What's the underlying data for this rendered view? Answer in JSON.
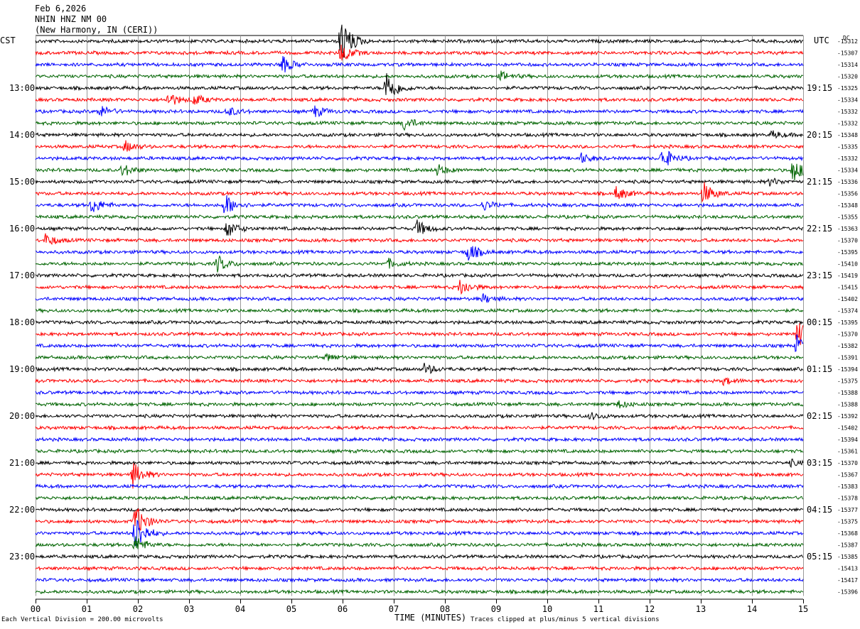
{
  "header": {
    "date": "Feb 6,2026",
    "station": "NHIN HNZ NM 00",
    "location": "(New Harmony, IN (CERI))"
  },
  "left_axis_label": "CST",
  "right_axis_label": "UTC",
  "dc_label": "DC",
  "xlabel": "TIME (MINUTES)",
  "footer_left": "Each Vertical Division =  200.00 microvolts",
  "footer_right": "Traces clipped at plus/minus 5 vertical divisions",
  "colors": {
    "trace": [
      "#000000",
      "#ff0000",
      "#0000ff",
      "#006400"
    ],
    "grid": "#999999"
  },
  "chart_data": {
    "type": "line",
    "x_ticks": [
      "00",
      "01",
      "02",
      "03",
      "04",
      "05",
      "06",
      "07",
      "08",
      "09",
      "10",
      "11",
      "12",
      "13",
      "14",
      "15"
    ],
    "xlim": [
      0,
      15
    ],
    "cst_labels": [
      {
        "row": 4,
        "text": "13:00"
      },
      {
        "row": 8,
        "text": "14:00"
      },
      {
        "row": 12,
        "text": "15:00"
      },
      {
        "row": 16,
        "text": "16:00"
      },
      {
        "row": 20,
        "text": "17:00"
      },
      {
        "row": 24,
        "text": "18:00"
      },
      {
        "row": 28,
        "text": "19:00"
      },
      {
        "row": 32,
        "text": "20:00"
      },
      {
        "row": 36,
        "text": "21:00"
      },
      {
        "row": 40,
        "text": "22:00"
      },
      {
        "row": 44,
        "text": "23:00"
      }
    ],
    "utc_labels": [
      {
        "row": 4,
        "text": "19:15"
      },
      {
        "row": 8,
        "text": "20:15"
      },
      {
        "row": 12,
        "text": "21:15"
      },
      {
        "row": 16,
        "text": "22:15"
      },
      {
        "row": 20,
        "text": "23:15"
      },
      {
        "row": 24,
        "text": "00:15"
      },
      {
        "row": 28,
        "text": "01:15"
      },
      {
        "row": 32,
        "text": "02:15"
      },
      {
        "row": 36,
        "text": "03:15"
      },
      {
        "row": 40,
        "text": "04:15"
      },
      {
        "row": 44,
        "text": "05:15"
      }
    ],
    "dc_offsets": [
      "-15312",
      "-15307",
      "-15314",
      "-15320",
      "-15325",
      "-15334",
      "-15332",
      "-15332",
      "-15348",
      "-15335",
      "-15332",
      "-15334",
      "-15336",
      "-15356",
      "-15348",
      "-15355",
      "-15363",
      "-15370",
      "-15395",
      "-15410",
      "-15419",
      "-15415",
      "-15402",
      "-15374",
      "-15395",
      "-15370",
      "-15382",
      "-15391",
      "-15394",
      "-15375",
      "-15388",
      "-15388",
      "-15392",
      "-15402",
      "-15394",
      "-15361",
      "-15370",
      "-15367",
      "-15383",
      "-15378",
      "-15377",
      "-15375",
      "-15368",
      "-15387",
      "-15385",
      "-15413",
      "-15417",
      "-15396"
    ],
    "events": [
      {
        "row": 0,
        "minute": 5.97,
        "amp": 36
      },
      {
        "row": 1,
        "minute": 5.97,
        "amp": 14
      },
      {
        "row": 2,
        "minute": 4.8,
        "amp": 14
      },
      {
        "row": 3,
        "minute": 9.1,
        "amp": 6
      },
      {
        "row": 4,
        "minute": 6.85,
        "amp": 26
      },
      {
        "row": 5,
        "minute": 2.6,
        "amp": 10
      },
      {
        "row": 5,
        "minute": 3.1,
        "amp": 8
      },
      {
        "row": 6,
        "minute": 1.25,
        "amp": 9
      },
      {
        "row": 6,
        "minute": 3.75,
        "amp": 7
      },
      {
        "row": 6,
        "minute": 5.45,
        "amp": 8
      },
      {
        "row": 7,
        "minute": 7.2,
        "amp": 10
      },
      {
        "row": 8,
        "minute": 14.4,
        "amp": 5
      },
      {
        "row": 9,
        "minute": 1.75,
        "amp": 8
      },
      {
        "row": 10,
        "minute": 10.65,
        "amp": 7
      },
      {
        "row": 10,
        "minute": 12.25,
        "amp": 16
      },
      {
        "row": 11,
        "minute": 1.7,
        "amp": 9
      },
      {
        "row": 11,
        "minute": 7.85,
        "amp": 8
      },
      {
        "row": 11,
        "minute": 14.8,
        "amp": 18
      },
      {
        "row": 12,
        "minute": 14.35,
        "amp": 5
      },
      {
        "row": 13,
        "minute": 11.35,
        "amp": 10
      },
      {
        "row": 13,
        "minute": 13.05,
        "amp": 16
      },
      {
        "row": 14,
        "minute": 1.1,
        "amp": 12
      },
      {
        "row": 14,
        "minute": 3.7,
        "amp": 16
      },
      {
        "row": 14,
        "minute": 8.75,
        "amp": 7
      },
      {
        "row": 16,
        "minute": 3.75,
        "amp": 12
      },
      {
        "row": 16,
        "minute": 7.45,
        "amp": 12
      },
      {
        "row": 17,
        "minute": 0.2,
        "amp": 9
      },
      {
        "row": 18,
        "minute": 8.45,
        "amp": 14
      },
      {
        "row": 19,
        "minute": 3.55,
        "amp": 12
      },
      {
        "row": 19,
        "minute": 6.9,
        "amp": 6
      },
      {
        "row": 21,
        "minute": 8.3,
        "amp": 12
      },
      {
        "row": 22,
        "minute": 8.75,
        "amp": 6
      },
      {
        "row": 25,
        "minute": 14.9,
        "amp": 20
      },
      {
        "row": 26,
        "minute": 14.88,
        "amp": 16
      },
      {
        "row": 27,
        "minute": 5.7,
        "amp": 5
      },
      {
        "row": 28,
        "minute": 7.6,
        "amp": 8
      },
      {
        "row": 29,
        "minute": 13.45,
        "amp": 5
      },
      {
        "row": 31,
        "minute": 11.4,
        "amp": 5
      },
      {
        "row": 32,
        "minute": 10.85,
        "amp": 5
      },
      {
        "row": 36,
        "minute": 14.75,
        "amp": 4
      },
      {
        "row": 37,
        "minute": 1.9,
        "amp": 18
      },
      {
        "row": 41,
        "minute": 1.95,
        "amp": 24
      },
      {
        "row": 42,
        "minute": 1.95,
        "amp": 28
      },
      {
        "row": 43,
        "minute": 1.95,
        "amp": 12
      }
    ]
  }
}
